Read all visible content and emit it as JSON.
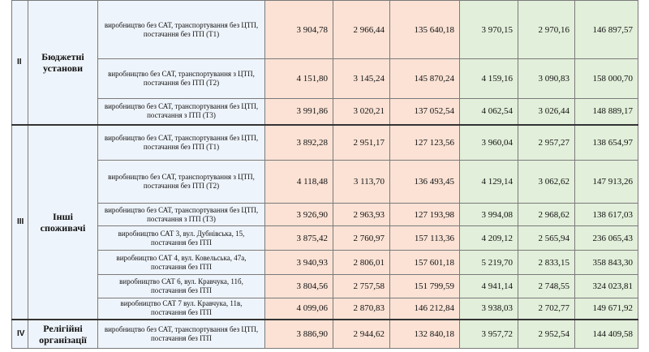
{
  "groups": [
    {
      "num": "II",
      "name_lines": [
        "Бюджетні",
        "установи"
      ],
      "rows": [
        {
          "desc": "виробництво без САТ, транспортування без ЦТП, постачання без ІТП (Т1)",
          "v": [
            "3 904,78",
            "2 966,44",
            "135 640,18",
            "3 970,15",
            "2 970,16",
            "146 897,57"
          ]
        },
        {
          "desc": "виробництво без САТ, транспортування з ЦТП, постачання без ІТП (Т2)",
          "v": [
            "4 151,80",
            "3 145,24",
            "145 870,24",
            "4 159,16",
            "3 090,83",
            "158 000,70"
          ]
        },
        {
          "desc": "виробництво без САТ, транспортування без ЦТП, постачання з ІТП (Т3)",
          "v": [
            "3 991,86",
            "3 020,21",
            "137 052,54",
            "4 062,54",
            "3 026,44",
            "148 889,17"
          ]
        }
      ]
    },
    {
      "num": "III",
      "name_lines": [
        "Інші",
        "споживачі"
      ],
      "rows": [
        {
          "desc": "виробництво без САТ, транспортування без ЦТП, постачання без ІТП (Т1)",
          "v": [
            "3 892,28",
            "2 951,17",
            "127 123,56",
            "3 960,04",
            "2 957,27",
            "138 654,97"
          ]
        },
        {
          "desc": "виробництво без САТ, транспортування з ЦТП, постачання без ІТП (Т2)",
          "v": [
            "4 118,48",
            "3 113,70",
            "136 493,45",
            "4 129,14",
            "3 062,62",
            "147 913,26"
          ]
        },
        {
          "desc": "виробництво без САТ, транспортування без ЦТП, постачання з ІТП (Т3)",
          "v": [
            "3 926,90",
            "2 963,93",
            "127 193,98",
            "3 994,08",
            "2 968,62",
            "138 617,03"
          ]
        },
        {
          "desc": "виробництво САТ 3, вул. Дубнівська, 15, постачання без ІТП",
          "v": [
            "3 875,42",
            "2 760,97",
            "157 113,36",
            "4 209,12",
            "2 565,94",
            "236 065,43"
          ]
        },
        {
          "desc": "виробництво САТ 4, вул. Ковельська, 47а, постачання без ІТП",
          "v": [
            "3 940,93",
            "2 806,01",
            "157 601,18",
            "5 219,70",
            "2 833,15",
            "358 843,30"
          ]
        },
        {
          "desc": "виробництво САТ 6, вул. Кравчука, 11б, постачання без ІТП",
          "v": [
            "3 804,56",
            "2 757,58",
            "151 799,59",
            "4 941,14",
            "2 748,55",
            "324 023,81"
          ]
        },
        {
          "desc": "виробництво САТ 7 вул. Кравчука, 11в, постачання без ІТП",
          "v": [
            "4 099,06",
            "2 870,83",
            "146 212,84",
            "3 938,03",
            "2 702,77",
            "149 671,92"
          ]
        }
      ]
    },
    {
      "num": "IV",
      "name_lines": [
        "Релігійні",
        "організації"
      ],
      "rows": [
        {
          "desc": "виробництво без САТ, транспортування без ЦТП, постачання без ІТП",
          "v": [
            "3 886,90",
            "2 944,62",
            "132 840,18",
            "3 957,72",
            "2 952,54",
            "144 409,58"
          ]
        }
      ]
    }
  ]
}
